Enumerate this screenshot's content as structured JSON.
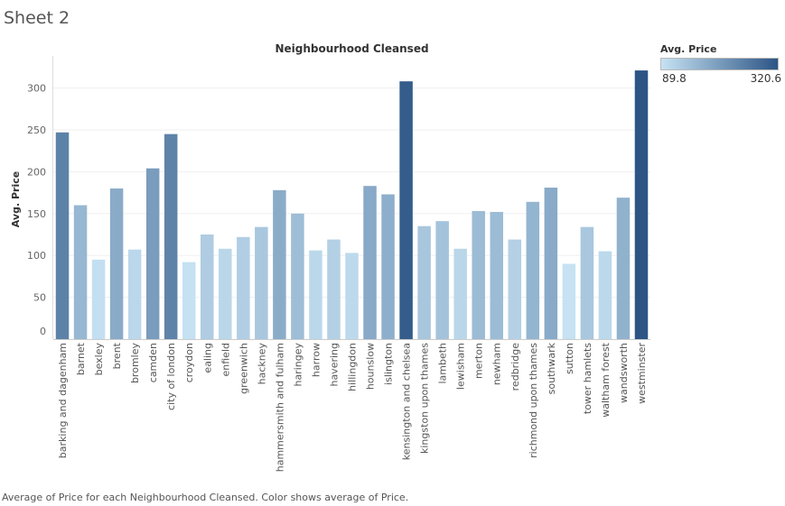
{
  "sheet_title": "Sheet 2",
  "footnote": "Average of Price for each Neighbourhood Cleansed.  Color shows average of Price.",
  "legend": {
    "title": "Avg. Price",
    "min_label": "89.8",
    "max_label": "320.6",
    "color_low": "#c6e2f3",
    "color_high": "#2c5585"
  },
  "chart_data": {
    "type": "bar",
    "title": "Neighbourhood Cleansed",
    "ylabel": "Avg. Price",
    "xlabel": "",
    "ylim": [
      0,
      330
    ],
    "yticks": [
      0,
      50,
      100,
      150,
      200,
      250,
      300
    ],
    "grid": true,
    "legend_position": "top-right",
    "color_range": [
      89.8,
      320.6
    ],
    "categories": [
      "barking and dagenham",
      "barnet",
      "bexley",
      "brent",
      "bromley",
      "camden",
      "city of london",
      "croydon",
      "ealing",
      "enfield",
      "greenwich",
      "hackney",
      "hammersmith and fulham",
      "haringey",
      "harrow",
      "havering",
      "hillingdon",
      "hounslow",
      "islington",
      "kensington and chelsea",
      "kingston upon thames",
      "lambeth",
      "lewisham",
      "merton",
      "newham",
      "redbridge",
      "richmond upon thames",
      "southwark",
      "sutton",
      "tower hamlets",
      "waltham forest",
      "wandsworth",
      "westminster"
    ],
    "values": [
      247,
      160,
      95,
      180,
      107,
      204,
      245,
      92,
      125,
      108,
      122,
      134,
      178,
      150,
      106,
      119,
      103,
      183,
      173,
      308,
      135,
      141,
      108,
      153,
      152,
      119,
      164,
      181,
      90,
      134,
      105,
      169,
      321
    ]
  }
}
